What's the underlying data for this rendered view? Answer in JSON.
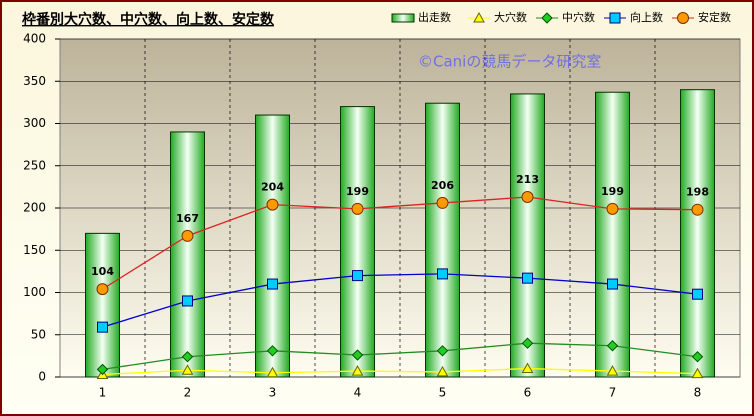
{
  "chart_data": {
    "type": "bar",
    "title": "枠番別大穴数、中穴数、向上数、安定数",
    "annotation": "©Caniの競馬データ研究室",
    "categories": [
      "1",
      "2",
      "3",
      "4",
      "5",
      "6",
      "7",
      "8"
    ],
    "series": [
      {
        "name": "出走数",
        "type": "bar",
        "color": "#33cc33",
        "values": [
          170,
          290,
          310,
          320,
          324,
          335,
          337,
          340
        ]
      },
      {
        "name": "大穴数",
        "type": "line",
        "marker": "triangle",
        "color": "#ffff00",
        "values": [
          3,
          8,
          5,
          7,
          6,
          10,
          7,
          4
        ]
      },
      {
        "name": "中穴数",
        "type": "line",
        "marker": "diamond",
        "color": "#228b22",
        "values": [
          9,
          24,
          31,
          26,
          31,
          40,
          37,
          24
        ]
      },
      {
        "name": "向上数",
        "type": "line",
        "marker": "square",
        "color": "#0000cc",
        "values": [
          59,
          90,
          110,
          120,
          122,
          117,
          110,
          98
        ]
      },
      {
        "name": "安定数",
        "type": "line",
        "marker": "circle",
        "color": "#dd2222",
        "show_labels": true,
        "values": [
          104,
          167,
          204,
          199,
          206,
          213,
          199,
          198
        ]
      }
    ],
    "ylim": [
      0,
      400
    ],
    "yticks": [
      0,
      50,
      100,
      150,
      200,
      250,
      300,
      350,
      400
    ],
    "grid": true
  }
}
